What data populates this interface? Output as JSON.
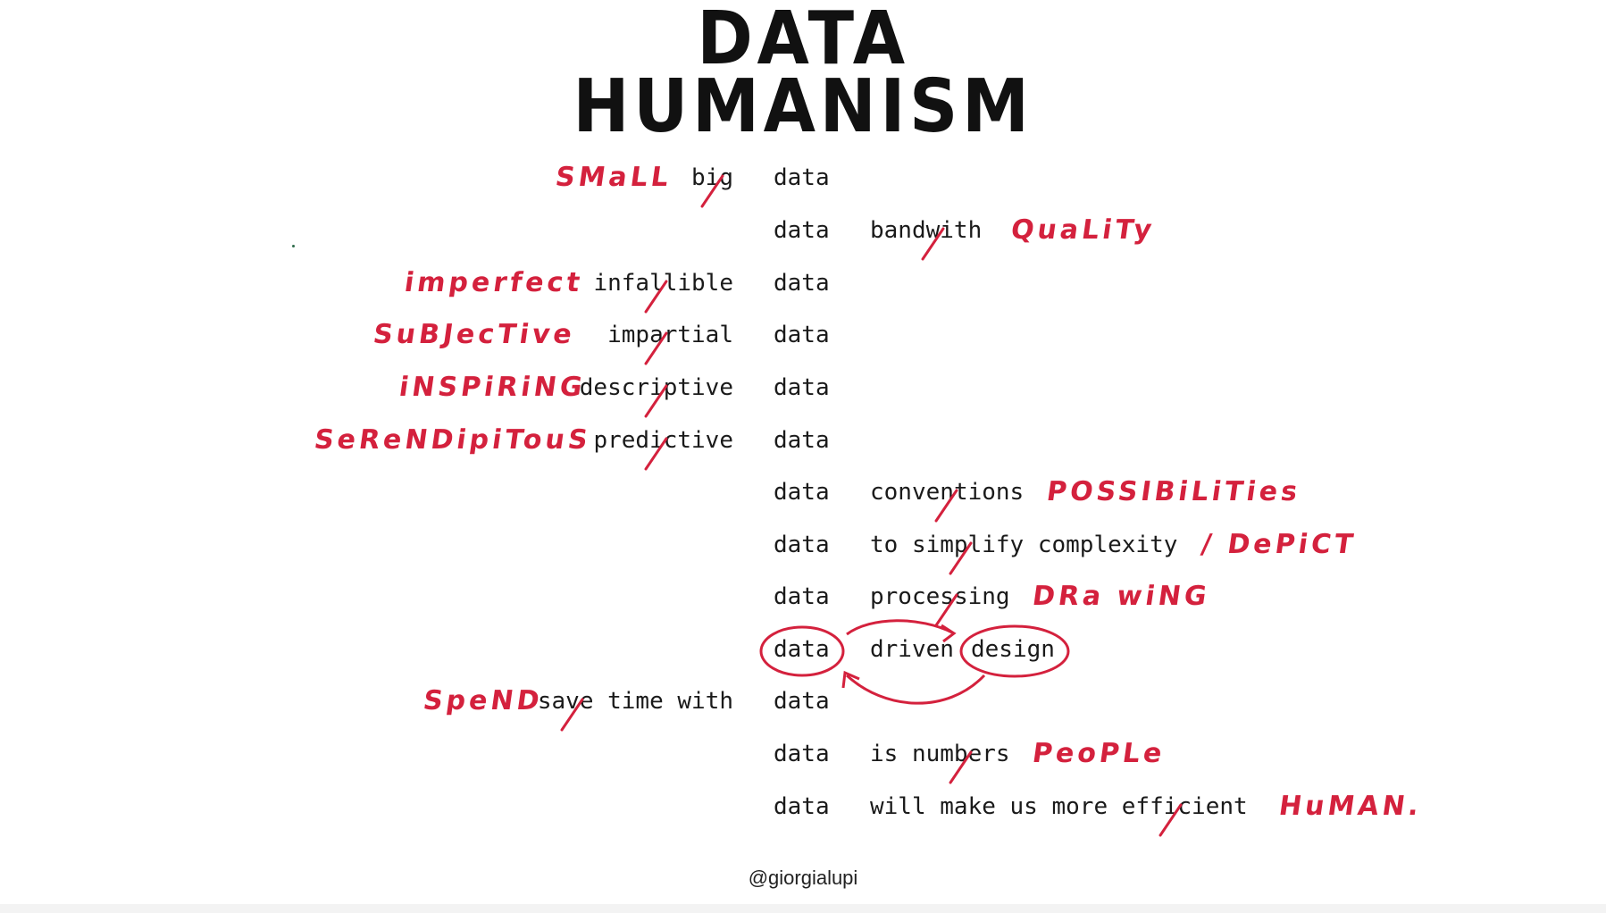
{
  "title": {
    "line1": "DATA",
    "line2": "HUMANISM"
  },
  "rows": [
    {
      "red": "SMaLL",
      "pre": "b",
      "strike": "i",
      "post": "g",
      "data": "data"
    },
    {
      "data": "data",
      "pre": "band",
      "strike": "w",
      "post": "ith",
      "red": "QuaLiTy"
    },
    {
      "red": "imperfect",
      "pre": "infa",
      "strike": "l",
      "post": "lible",
      "data": "data"
    },
    {
      "red": "SuBJecTive",
      "pre": "imp",
      "strike": "a",
      "post": "rtial",
      "data": "data"
    },
    {
      "red": "iNSPiRiNG",
      "pre": "descr",
      "strike": "i",
      "post": "ptive",
      "data": "data"
    },
    {
      "red": "SeReNDipiTouS",
      "pre": "pred",
      "strike": "i",
      "post": "ctive",
      "data": "data"
    },
    {
      "data": "data",
      "pre": "conve",
      "strike": "n",
      "post": "tions",
      "red": "POSSIBiLiTies"
    },
    {
      "data": "data",
      "pre": "to sim",
      "strike": "p",
      "post": "lify complexity",
      "red": "/ DePiCT"
    },
    {
      "data": "data",
      "pre": "proce",
      "strike": "s",
      "post": "sing",
      "red": "DRa wiNG"
    },
    {
      "data": "data",
      "mid": "driven",
      "design": "design"
    },
    {
      "red": "SpeND",
      "pre": "sa",
      "strike": "v",
      "post": "e time with",
      "data": "data"
    },
    {
      "data": "data",
      "pre": "is num",
      "strike": "b",
      "post": "ers",
      "red": "PeoPLe"
    },
    {
      "data": "data",
      "pre": "will make us more eff",
      "strike": "i",
      "post": "cient",
      "red": "HuMAN."
    }
  ],
  "caption": "@giorgialupi",
  "colors": {
    "accent": "#d4213d",
    "ink": "#111111"
  }
}
